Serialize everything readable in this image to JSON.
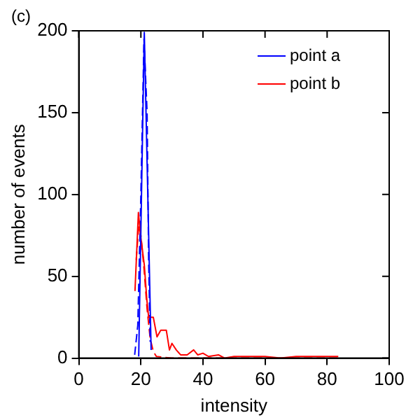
{
  "chart_data": {
    "type": "line",
    "xlabel": "intensity",
    "ylabel": "number of events",
    "annotations": [
      "(c)"
    ],
    "xlim": [
      0,
      100
    ],
    "xticks": [
      0,
      20,
      40,
      60,
      80,
      100
    ],
    "ylim": [
      0,
      200
    ],
    "yticks": [
      0,
      50,
      100,
      150,
      200
    ],
    "grid": false,
    "legend": "top right",
    "marker": "none",
    "series": [
      {
        "name": "point a",
        "color": "#0000ff",
        "line_style": "solid",
        "x": [
          19.3,
          21.1,
          23.3
        ],
        "values": [
          1,
          199,
          5
        ]
      },
      {
        "name": "point b",
        "color": "#ff0000",
        "line_style": "solid",
        "x": [
          18.1,
          19.2,
          19.9,
          21.1,
          21.9,
          22.5,
          24,
          25.2,
          26.4,
          28.2,
          29.2,
          30,
          31.4,
          32.8,
          34.9,
          37,
          38.3,
          40,
          41.8,
          45,
          47,
          50,
          53,
          56,
          60,
          65,
          70,
          75,
          80,
          83.6
        ],
        "values": [
          41,
          89,
          75,
          57,
          36,
          25,
          25,
          13,
          17,
          17,
          5,
          9,
          5,
          2,
          2,
          5,
          2,
          3,
          1,
          2,
          0,
          1,
          1,
          1,
          1,
          0,
          1,
          1,
          1,
          1
        ]
      },
      {
        "color": "#0000ff",
        "line_style": "dashed",
        "x": [
          18,
          19,
          20,
          21,
          22,
          22.5,
          23
        ],
        "values": [
          2,
          20,
          100,
          195,
          150,
          60,
          10
        ]
      },
      {
        "color": "#ff0000",
        "line_style": "dashed",
        "x": [
          18.5,
          19.3,
          20,
          21,
          22,
          23,
          24,
          25,
          30,
          84
        ],
        "values": [
          60,
          81,
          75,
          55,
          30,
          12,
          4,
          1,
          0,
          0
        ]
      }
    ]
  }
}
